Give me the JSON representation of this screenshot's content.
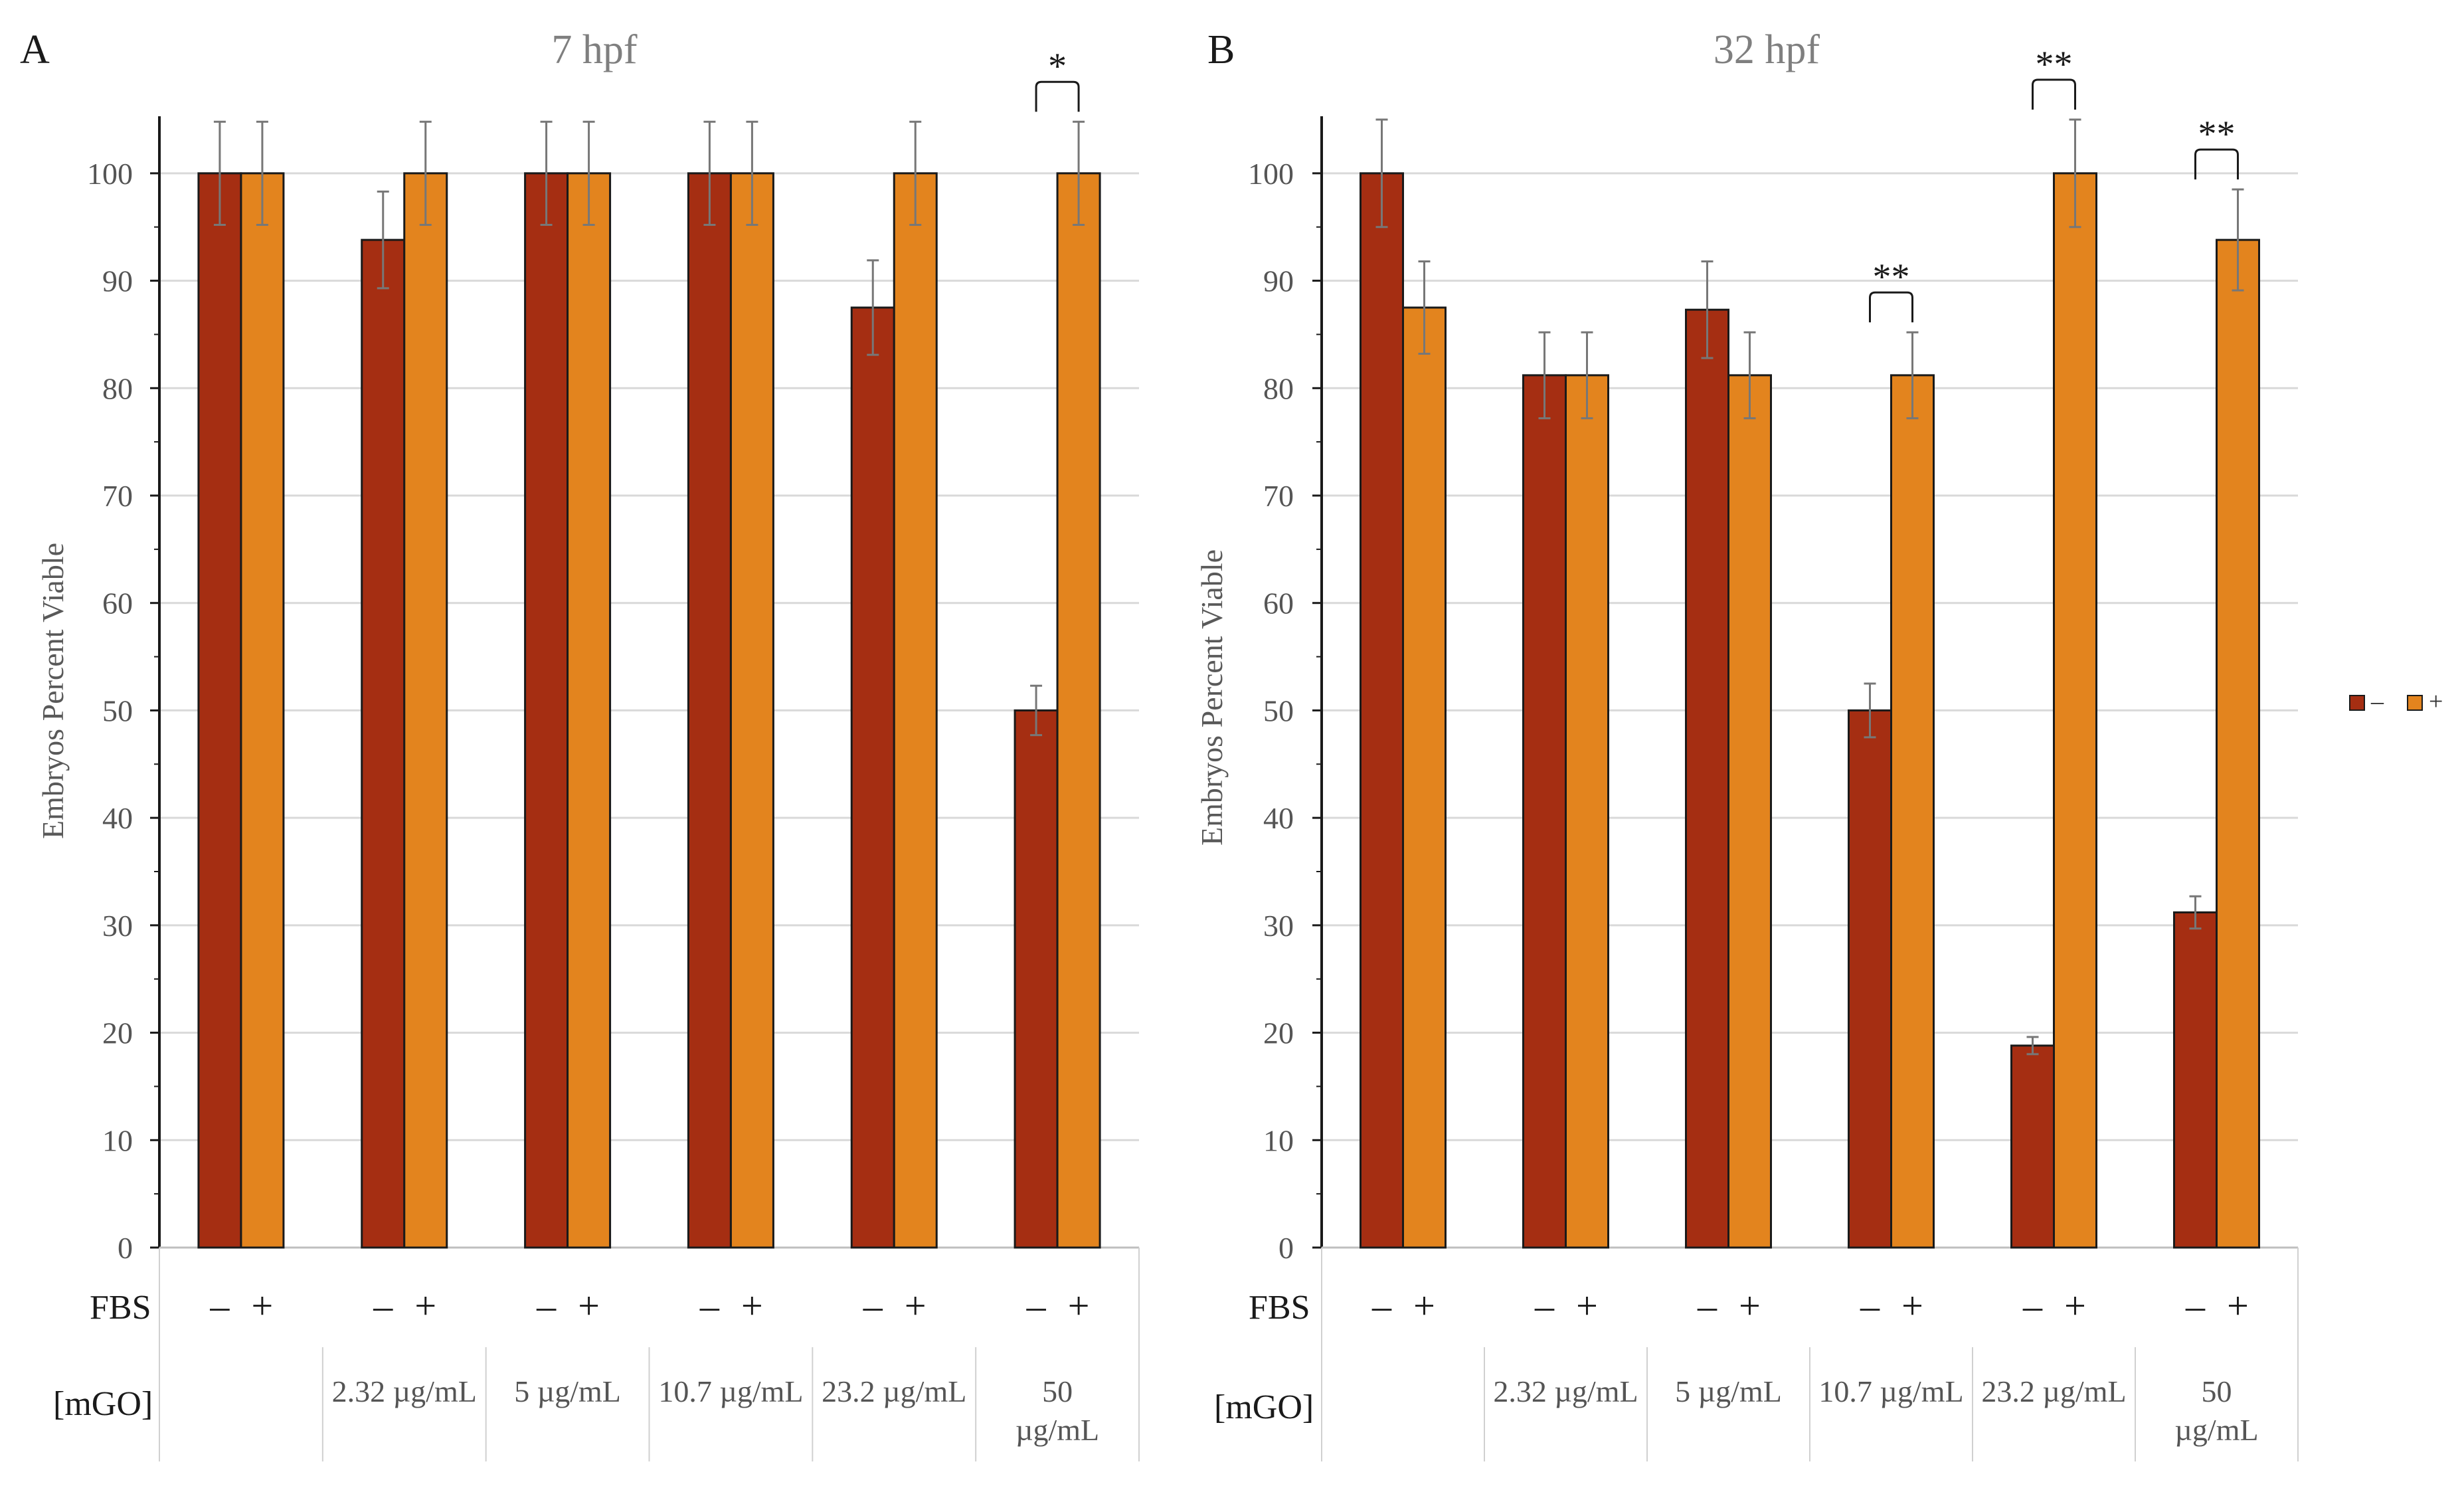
{
  "chart_data": [
    {
      "type": "bar",
      "panel_label": "A",
      "title": "7 hpf",
      "ylabel": "Embryos Percent Viable",
      "ylim": [
        0,
        105
      ],
      "yticks": [
        0,
        10,
        20,
        30,
        40,
        50,
        60,
        70,
        80,
        90,
        100
      ],
      "grid": true,
      "categories": [
        "",
        "2.32 µg/mL",
        "5 µg/mL",
        "10.7 µg/mL",
        "23.2 µg/mL",
        "50 µg/mL"
      ],
      "series": [
        {
          "name": "–",
          "values": [
            100,
            93.8,
            100,
            100,
            87.5,
            50
          ],
          "errors": [
            4.8,
            4.5,
            4.8,
            4.8,
            4.4,
            2.3
          ]
        },
        {
          "name": "+",
          "values": [
            100,
            100,
            100,
            100,
            100,
            100
          ],
          "errors": [
            4.8,
            4.8,
            4.8,
            4.8,
            4.8,
            4.8
          ]
        }
      ],
      "significance": [
        {
          "category_index": 5,
          "label": "*"
        }
      ]
    },
    {
      "type": "bar",
      "panel_label": "B",
      "title": "32 hpf",
      "ylabel": "Embryos Percent Viable",
      "ylim": [
        0,
        105
      ],
      "yticks": [
        0,
        10,
        20,
        30,
        40,
        50,
        60,
        70,
        80,
        90,
        100
      ],
      "grid": true,
      "categories": [
        "",
        "2.32 µg/mL",
        "5 µg/mL",
        "10.7 µg/mL",
        "23.2 µg/mL",
        "50 µg/mL"
      ],
      "series": [
        {
          "name": "–",
          "values": [
            100,
            81.2,
            87.3,
            50,
            18.8,
            31.2
          ],
          "errors": [
            5,
            4,
            4.5,
            2.5,
            0.8,
            1.5
          ]
        },
        {
          "name": "+",
          "values": [
            87.5,
            81.2,
            81.2,
            81.2,
            100,
            93.8
          ],
          "errors": [
            4.3,
            4,
            4,
            4,
            5,
            4.7
          ]
        }
      ],
      "significance": [
        {
          "category_index": 3,
          "label": "**"
        },
        {
          "category_index": 4,
          "label": "**"
        },
        {
          "category_index": 5,
          "label": "**"
        }
      ]
    }
  ],
  "row_labels": {
    "fbs": "FBS",
    "mgo": "[mGO]"
  },
  "fbs_marks": {
    "minus": "–",
    "plus": "+"
  },
  "legend": {
    "minus": "–",
    "plus": "+"
  },
  "colors": {
    "minus": "#a52e12",
    "plus": "#e3841e",
    "gridline": "#d9d9d9",
    "axis": "#1a1a1a",
    "title_text": "#7f7f7f",
    "tick_text": "#555555",
    "errorbar": "#777777"
  }
}
